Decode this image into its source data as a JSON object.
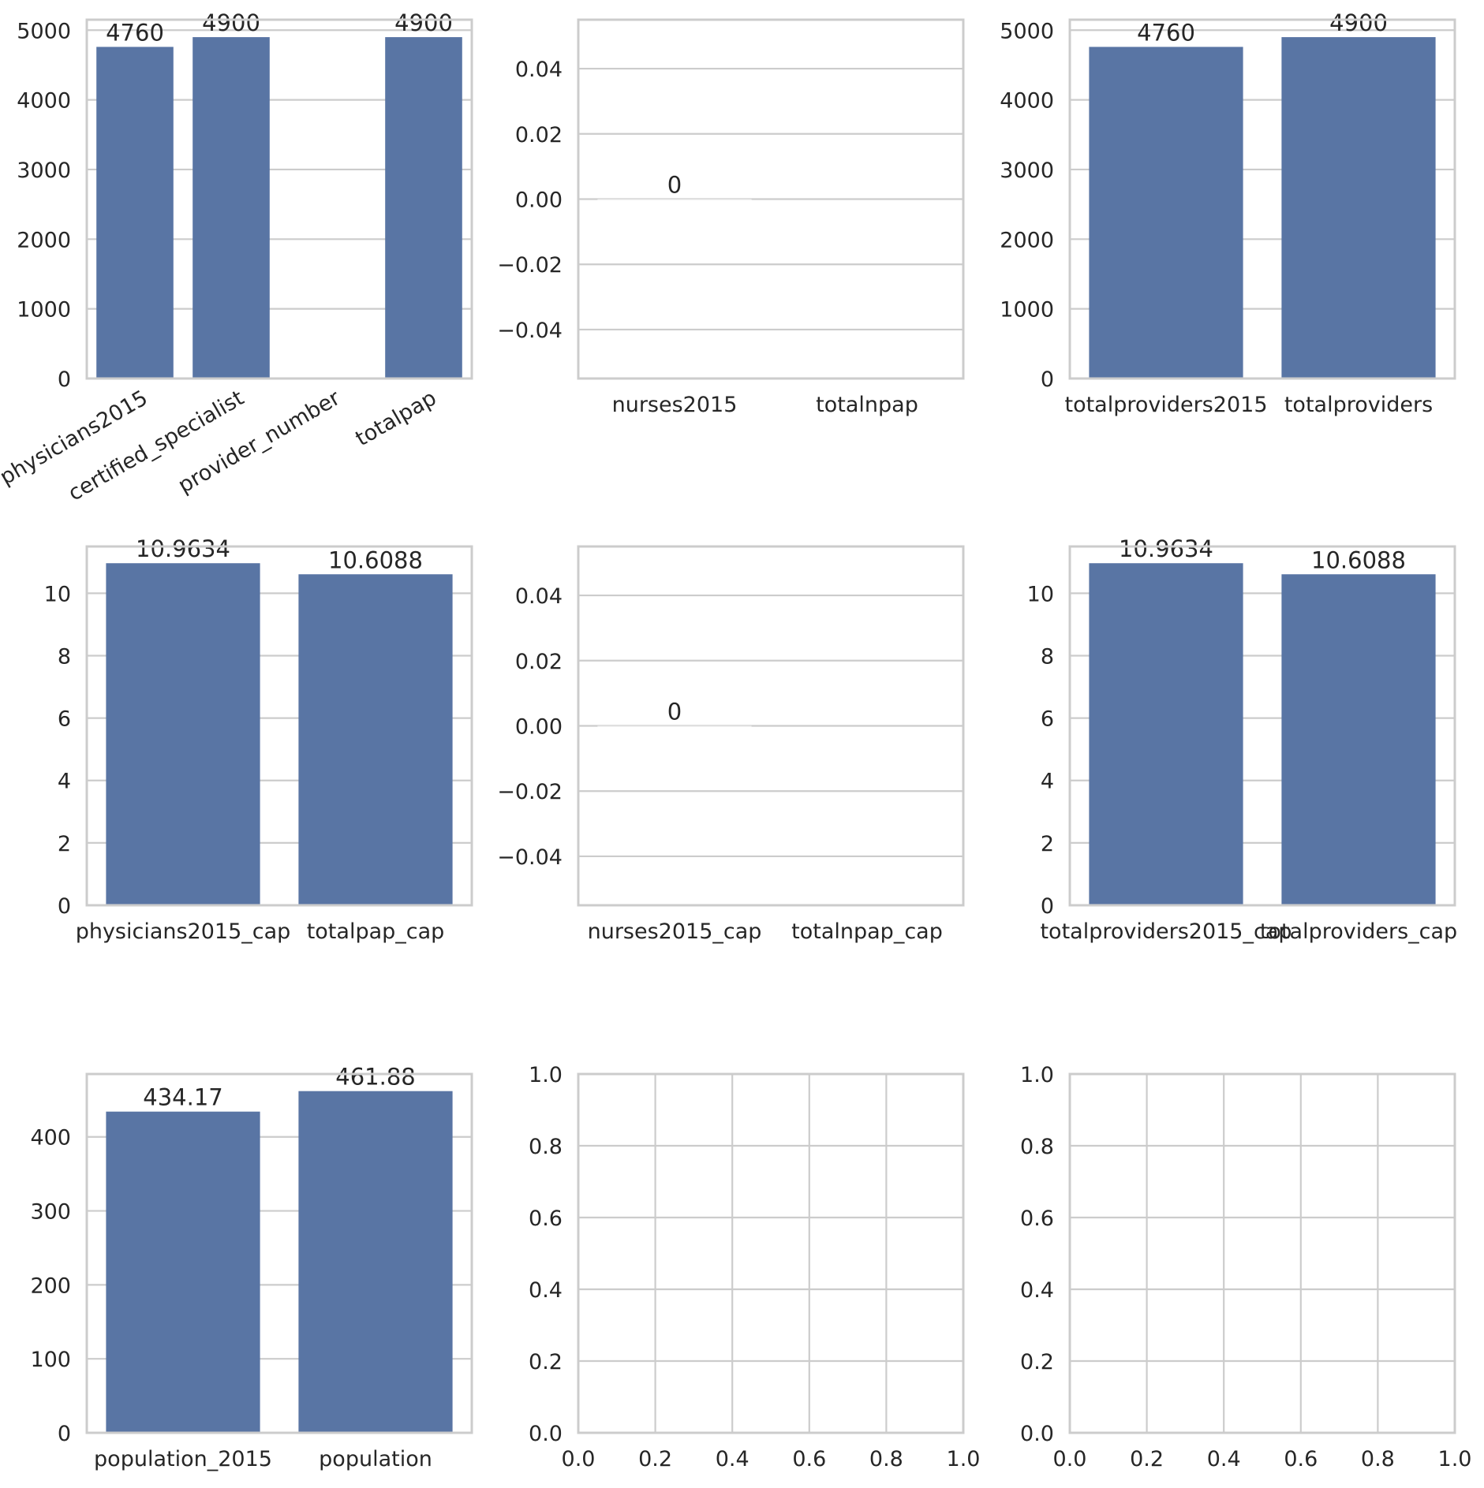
{
  "figure": {
    "background": "#ffffff",
    "grid_color": "#cccccc",
    "spine_color": "#cccccc",
    "bar_color": "#5975a4",
    "text_color": "#262626"
  },
  "chart_data": [
    {
      "type": "bar",
      "categories": [
        "physicians2015",
        "certified_specialist",
        "provider_number",
        "totalpap"
      ],
      "values": [
        4760,
        4900,
        null,
        4900
      ],
      "data_labels": [
        "4760",
        "4900",
        "",
        "4900"
      ],
      "ylim": [
        0,
        5150
      ],
      "yticks": [
        0,
        1000,
        2000,
        3000,
        4000,
        5000
      ],
      "ytick_labels": [
        "0",
        "1000",
        "2000",
        "3000",
        "4000",
        "5000"
      ],
      "rotate_xlabels": true,
      "grid": "y"
    },
    {
      "type": "bar",
      "categories": [
        "nurses2015",
        "totalnpap"
      ],
      "values": [
        0,
        null
      ],
      "data_labels": [
        "0",
        ""
      ],
      "ylim": [
        -0.055,
        0.055
      ],
      "yticks": [
        -0.04,
        -0.02,
        0.0,
        0.02,
        0.04
      ],
      "ytick_labels": [
        "−0.04",
        "−0.02",
        "0.00",
        "0.02",
        "0.04"
      ],
      "rotate_xlabels": false,
      "grid": "y"
    },
    {
      "type": "bar",
      "categories": [
        "totalproviders2015",
        "totalproviders"
      ],
      "values": [
        4760,
        4900
      ],
      "data_labels": [
        "4760",
        "4900"
      ],
      "ylim": [
        0,
        5150
      ],
      "yticks": [
        0,
        1000,
        2000,
        3000,
        4000,
        5000
      ],
      "ytick_labels": [
        "0",
        "1000",
        "2000",
        "3000",
        "4000",
        "5000"
      ],
      "rotate_xlabels": false,
      "grid": "y"
    },
    {
      "type": "bar",
      "categories": [
        "physicians2015_cap",
        "totalpap_cap"
      ],
      "values": [
        10.9634,
        10.6088
      ],
      "data_labels": [
        "10.9634",
        "10.6088"
      ],
      "ylim": [
        0,
        11.5
      ],
      "yticks": [
        0,
        2,
        4,
        6,
        8,
        10
      ],
      "ytick_labels": [
        "0",
        "2",
        "4",
        "6",
        "8",
        "10"
      ],
      "rotate_xlabels": false,
      "grid": "y"
    },
    {
      "type": "bar",
      "categories": [
        "nurses2015_cap",
        "totalnpap_cap"
      ],
      "values": [
        0,
        null
      ],
      "data_labels": [
        "0",
        ""
      ],
      "ylim": [
        -0.055,
        0.055
      ],
      "yticks": [
        -0.04,
        -0.02,
        0.0,
        0.02,
        0.04
      ],
      "ytick_labels": [
        "−0.04",
        "−0.02",
        "0.00",
        "0.02",
        "0.04"
      ],
      "rotate_xlabels": false,
      "grid": "y"
    },
    {
      "type": "bar",
      "categories": [
        "totalproviders2015_cap",
        "totalproviders_cap"
      ],
      "values": [
        10.9634,
        10.6088
      ],
      "data_labels": [
        "10.9634",
        "10.6088"
      ],
      "ylim": [
        0,
        11.5
      ],
      "yticks": [
        0,
        2,
        4,
        6,
        8,
        10
      ],
      "ytick_labels": [
        "0",
        "2",
        "4",
        "6",
        "8",
        "10"
      ],
      "rotate_xlabels": false,
      "grid": "y"
    },
    {
      "type": "bar",
      "categories": [
        "population_2015",
        "population"
      ],
      "values": [
        434.17,
        461.88
      ],
      "data_labels": [
        "434.17",
        "461.88"
      ],
      "ylim": [
        0,
        485
      ],
      "yticks": [
        0,
        100,
        200,
        300,
        400
      ],
      "ytick_labels": [
        "0",
        "100",
        "200",
        "300",
        "400"
      ],
      "rotate_xlabels": false,
      "grid": "y"
    },
    {
      "type": "empty",
      "xlim": [
        0,
        1
      ],
      "ylim": [
        0,
        1
      ],
      "xticks": [
        0,
        0.2,
        0.4,
        0.6,
        0.8,
        1.0
      ],
      "xtick_labels": [
        "0.0",
        "0.2",
        "0.4",
        "0.6",
        "0.8",
        "1.0"
      ],
      "yticks": [
        0,
        0.2,
        0.4,
        0.6,
        0.8,
        1.0
      ],
      "ytick_labels": [
        "0.0",
        "0.2",
        "0.4",
        "0.6",
        "0.8",
        "1.0"
      ],
      "grid": "both"
    },
    {
      "type": "empty",
      "xlim": [
        0,
        1
      ],
      "ylim": [
        0,
        1
      ],
      "xticks": [
        0,
        0.2,
        0.4,
        0.6,
        0.8,
        1.0
      ],
      "xtick_labels": [
        "0.0",
        "0.2",
        "0.4",
        "0.6",
        "0.8",
        "1.0"
      ],
      "yticks": [
        0,
        0.2,
        0.4,
        0.6,
        0.8,
        1.0
      ],
      "ytick_labels": [
        "0.0",
        "0.2",
        "0.4",
        "0.6",
        "0.8",
        "1.0"
      ],
      "grid": "both"
    }
  ]
}
